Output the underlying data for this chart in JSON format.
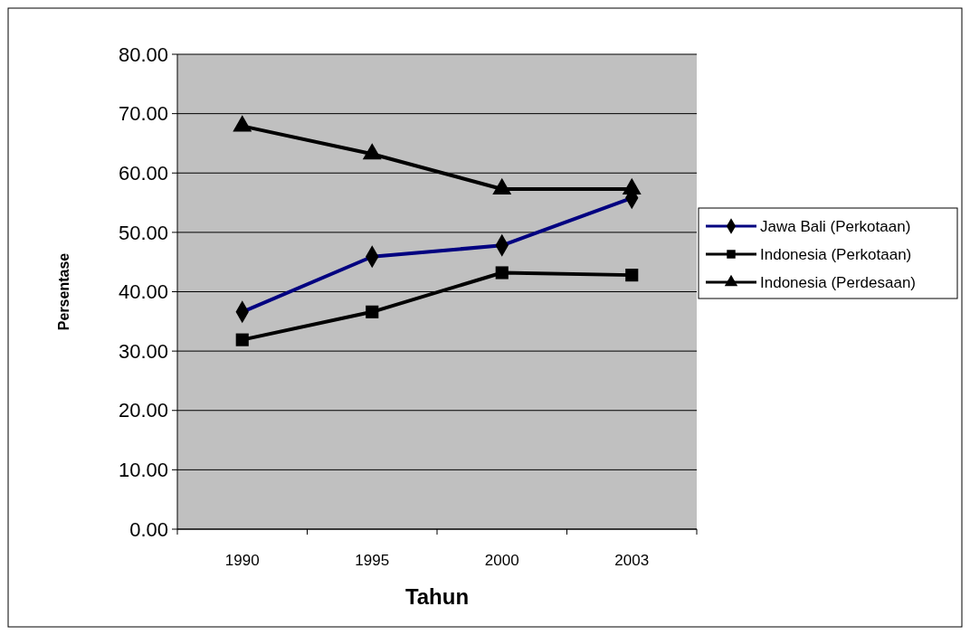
{
  "chart_data": {
    "type": "line",
    "xlabel": "Tahun",
    "ylabel": "Persentase",
    "categories": [
      "1990",
      "1995",
      "2000",
      "2003"
    ],
    "series": [
      {
        "name": "Jawa Bali (Perkotaan)",
        "color": "#000080",
        "marker": "diamond",
        "values": [
          36.6,
          45.9,
          47.8,
          55.8
        ]
      },
      {
        "name": "Indonesia (Perkotaan)",
        "color": "#000000",
        "marker": "square",
        "values": [
          31.9,
          36.6,
          43.2,
          42.8
        ]
      },
      {
        "name": "Indonesia (Perdesaan)",
        "color": "#000000",
        "marker": "triangle",
        "values": [
          67.9,
          63.2,
          57.3,
          57.3
        ]
      }
    ],
    "ylim": [
      0,
      80
    ],
    "yticks": [
      {
        "value": 0,
        "label": "0.00"
      },
      {
        "value": 10,
        "label": "10.00"
      },
      {
        "value": 20,
        "label": "20.00"
      },
      {
        "value": 30,
        "label": "30.00"
      },
      {
        "value": 40,
        "label": "40.00"
      },
      {
        "value": 50,
        "label": "50.00"
      },
      {
        "value": 60,
        "label": "60.00"
      },
      {
        "value": 70,
        "label": "70.00"
      },
      {
        "value": 80,
        "label": "80.00"
      }
    ],
    "grid": "y",
    "legend": "right"
  }
}
